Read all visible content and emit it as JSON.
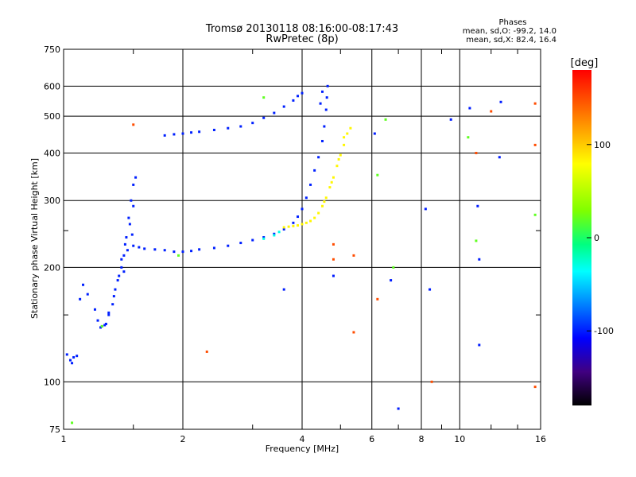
{
  "chart_data": {
    "type": "scatter",
    "title": "Tromsø 20130118 08:16:00-08:17:43",
    "subtitle": "RwPretec (8p)",
    "xlabel": "Frequency [MHz]",
    "ylabel": "Stationary phase Virtual Height [km]",
    "x_scale": "log",
    "y_scale": "log",
    "xlim": [
      1,
      16
    ],
    "ylim": [
      75,
      750
    ],
    "x_ticks": [
      1,
      2,
      4,
      6,
      8,
      10,
      16
    ],
    "x_tick_labels": [
      "1",
      "2",
      "4",
      "6",
      "8",
      "10",
      "16"
    ],
    "x_minor_ticks": [
      1.5,
      3,
      5,
      7,
      9,
      12,
      14
    ],
    "y_ticks": [
      75,
      100,
      200,
      300,
      400,
      500,
      600,
      750
    ],
    "y_tick_labels": [
      "75",
      "100",
      "200",
      "300",
      "400",
      "500",
      "600",
      "750"
    ],
    "y_minor_ticks": [
      150,
      250
    ],
    "grid": true,
    "phases_block": {
      "heading": "Phases",
      "line1": "mean, sd,O: -99.2, 14.0",
      "line2": "mean, sd,X:  82.4, 16.4"
    },
    "colorbar": {
      "label": "[deg]",
      "range": [
        -180,
        180
      ],
      "ticks": [
        100,
        0,
        -100
      ],
      "tick_labels": [
        "100",
        "0",
        "-100"
      ]
    },
    "traces": [
      {
        "phase": -99,
        "points": [
          [
            1.02,
            118
          ],
          [
            1.04,
            114
          ],
          [
            1.05,
            112
          ],
          [
            1.06,
            116
          ],
          [
            1.08,
            117
          ],
          [
            1.1,
            165
          ],
          [
            1.12,
            180
          ],
          [
            1.15,
            170
          ],
          [
            1.2,
            155
          ],
          [
            1.22,
            145
          ],
          [
            1.25,
            140
          ],
          [
            1.28,
            142
          ],
          [
            1.3,
            150
          ],
          [
            1.33,
            160
          ],
          [
            1.35,
            175
          ],
          [
            1.38,
            190
          ],
          [
            1.4,
            200
          ],
          [
            1.42,
            215
          ],
          [
            1.44,
            240
          ],
          [
            1.46,
            270
          ],
          [
            1.48,
            300
          ],
          [
            1.5,
            330
          ],
          [
            1.52,
            345
          ],
          [
            1.5,
            290
          ],
          [
            1.47,
            260
          ],
          [
            1.43,
            230
          ],
          [
            1.4,
            210
          ],
          [
            1.37,
            185
          ],
          [
            1.34,
            168
          ],
          [
            1.3,
            152
          ],
          [
            1.27,
            141
          ],
          [
            1.24,
            139
          ],
          [
            1.42,
            195
          ],
          [
            1.45,
            222
          ],
          [
            1.49,
            244
          ]
        ]
      },
      {
        "phase": -99,
        "points": [
          [
            1.5,
            228
          ],
          [
            1.55,
            226
          ],
          [
            1.6,
            224
          ],
          [
            1.7,
            223
          ],
          [
            1.8,
            222
          ],
          [
            1.9,
            220
          ],
          [
            2.0,
            220
          ],
          [
            2.1,
            221
          ],
          [
            2.2,
            223
          ],
          [
            2.4,
            225
          ],
          [
            2.6,
            228
          ],
          [
            2.8,
            232
          ],
          [
            3.0,
            236
          ],
          [
            3.2,
            240
          ],
          [
            3.4,
            245
          ],
          [
            3.6,
            252
          ],
          [
            3.8,
            262
          ],
          [
            3.9,
            272
          ],
          [
            4.0,
            285
          ],
          [
            4.1,
            305
          ],
          [
            4.2,
            330
          ],
          [
            4.3,
            360
          ],
          [
            4.4,
            390
          ],
          [
            4.5,
            430
          ],
          [
            4.55,
            470
          ],
          [
            4.6,
            520
          ],
          [
            4.62,
            560
          ],
          [
            4.64,
            600
          ],
          [
            4.5,
            580
          ],
          [
            4.45,
            540
          ]
        ]
      },
      {
        "phase": -99,
        "points": [
          [
            1.8,
            445
          ],
          [
            1.9,
            448
          ],
          [
            2.0,
            450
          ],
          [
            2.1,
            453
          ],
          [
            2.2,
            455
          ],
          [
            2.4,
            460
          ],
          [
            2.6,
            465
          ],
          [
            2.8,
            470
          ],
          [
            3.0,
            480
          ],
          [
            3.2,
            495
          ],
          [
            3.4,
            510
          ],
          [
            3.6,
            530
          ],
          [
            3.8,
            550
          ],
          [
            3.9,
            565
          ],
          [
            4.0,
            575
          ]
        ]
      },
      {
        "phase": -30,
        "points": [
          [
            3.2,
            238
          ],
          [
            3.4,
            243
          ],
          [
            3.5,
            248
          ]
        ]
      },
      {
        "phase": 82,
        "points": [
          [
            3.6,
            255
          ],
          [
            3.7,
            256
          ],
          [
            3.8,
            257
          ],
          [
            3.9,
            258
          ],
          [
            4.0,
            260
          ],
          [
            4.1,
            262
          ],
          [
            4.2,
            265
          ],
          [
            4.3,
            270
          ],
          [
            4.4,
            278
          ],
          [
            4.5,
            290
          ],
          [
            4.6,
            305
          ],
          [
            4.7,
            325
          ],
          [
            4.8,
            345
          ],
          [
            4.9,
            370
          ],
          [
            5.0,
            395
          ],
          [
            5.1,
            420
          ],
          [
            5.2,
            450
          ],
          [
            5.3,
            465
          ],
          [
            5.1,
            440
          ],
          [
            4.95,
            385
          ],
          [
            4.75,
            335
          ],
          [
            4.55,
            298
          ]
        ]
      },
      {
        "phase": 150,
        "points": [
          [
            1.5,
            475
          ],
          [
            2.3,
            120
          ],
          [
            4.8,
            210
          ],
          [
            4.8,
            230
          ],
          [
            5.4,
            215
          ],
          [
            5.4,
            135
          ],
          [
            8.5,
            100
          ],
          [
            12,
            515
          ],
          [
            15.5,
            540
          ],
          [
            15.5,
            97
          ],
          [
            15.5,
            420
          ],
          [
            6.2,
            165
          ],
          [
            11,
            400
          ]
        ]
      },
      {
        "phase": 20,
        "points": [
          [
            1.25,
            140
          ],
          [
            1.05,
            78
          ],
          [
            3.2,
            560
          ],
          [
            6.2,
            350
          ],
          [
            6.5,
            490
          ],
          [
            6.8,
            200
          ],
          [
            10.5,
            440
          ],
          [
            11,
            235
          ],
          [
            15.5,
            275
          ],
          [
            1.95,
            215
          ]
        ]
      },
      {
        "phase": -100,
        "points": [
          [
            7.0,
            85
          ],
          [
            8.2,
            285
          ],
          [
            8.4,
            175
          ],
          [
            9.5,
            490
          ],
          [
            10.6,
            525
          ],
          [
            11.1,
            290
          ],
          [
            11.2,
            210
          ],
          [
            11.2,
            125
          ],
          [
            12.7,
            545
          ],
          [
            12.6,
            390
          ],
          [
            4.8,
            190
          ],
          [
            3.6,
            175
          ],
          [
            6.1,
            450
          ],
          [
            6.7,
            185
          ]
        ]
      }
    ]
  }
}
